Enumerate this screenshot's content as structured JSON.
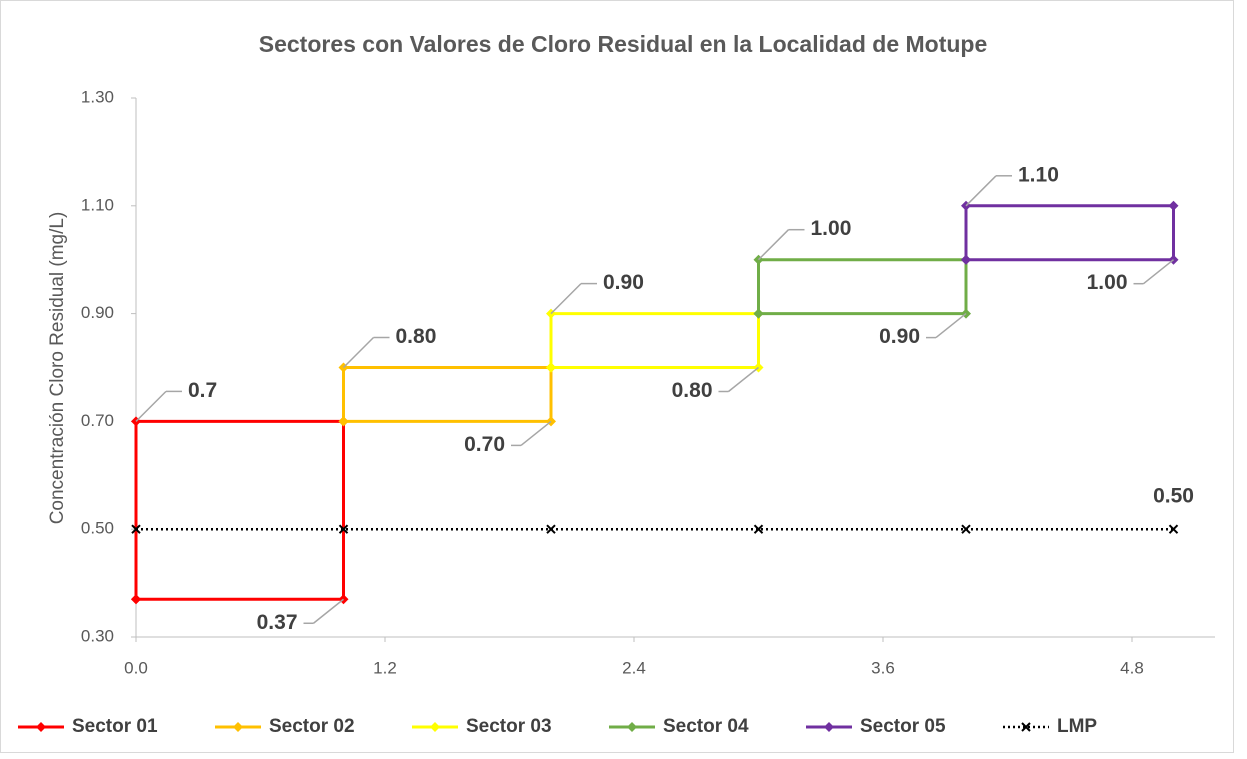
{
  "chart_data": {
    "type": "line",
    "title": "Sectores con Valores de Cloro Residual en la Localidad de Motupe",
    "ylabel": "Concentración Cloro Residual (mg/L)",
    "xlim": [
      0,
      5.2
    ],
    "xticks": [
      {
        "value": 0,
        "label": "0.0"
      },
      1.2,
      2.4,
      3.6,
      4.8
    ],
    "ylim": [
      0.3,
      1.3
    ],
    "yticks": [
      {
        "value": 0.3,
        "label": "0.30"
      },
      {
        "value": 0.5,
        "label": "0.50"
      },
      {
        "value": 0.7,
        "label": "0.70"
      },
      {
        "value": 0.9,
        "label": "0.90"
      },
      {
        "value": 1.1,
        "label": "1.10"
      },
      {
        "value": 1.3,
        "label": "1.30"
      }
    ],
    "grid": false,
    "legend": "bottom",
    "series": [
      {
        "name": "Sector 01",
        "color": "#ff0000",
        "marker": "diamond",
        "dash": "solid",
        "x": [
          0,
          0,
          1,
          1,
          0
        ],
        "values": [
          0.37,
          0.7,
          0.7,
          0.37,
          0.37
        ],
        "value_labels": [
          null,
          "0.7",
          null,
          "0.37",
          null
        ]
      },
      {
        "name": "Sector 02",
        "color": "#ffc000",
        "marker": "diamond",
        "dash": "solid",
        "x": [
          1,
          1,
          2,
          2,
          1
        ],
        "values": [
          0.7,
          0.8,
          0.8,
          0.7,
          0.7
        ],
        "value_labels": [
          null,
          "0.80",
          null,
          "0.70",
          null
        ]
      },
      {
        "name": "Sector 03",
        "color": "#ffff00",
        "marker": "diamond",
        "dash": "solid",
        "x": [
          2,
          2,
          3,
          3,
          2
        ],
        "values": [
          0.8,
          0.9,
          0.9,
          0.8,
          0.8
        ],
        "value_labels": [
          null,
          "0.90",
          null,
          "0.80",
          null
        ]
      },
      {
        "name": "Sector 04",
        "color": "#70ad47",
        "marker": "diamond",
        "dash": "solid",
        "x": [
          3,
          3,
          4,
          4,
          3
        ],
        "values": [
          0.9,
          1.0,
          1.0,
          0.9,
          0.9
        ],
        "value_labels": [
          null,
          "1.00",
          null,
          "0.90",
          null
        ]
      },
      {
        "name": "Sector 05",
        "color": "#7030a0",
        "marker": "diamond",
        "dash": "solid",
        "x": [
          4,
          4,
          5,
          5,
          4
        ],
        "values": [
          1.0,
          1.1,
          1.1,
          1.0,
          1.0
        ],
        "value_labels": [
          null,
          "1.10",
          null,
          "1.00",
          null
        ]
      },
      {
        "name": "LMP",
        "color": "#000000",
        "marker": "x",
        "dash": "dotted",
        "x": [
          0,
          1,
          2,
          3,
          4,
          5
        ],
        "values": [
          0.5,
          0.5,
          0.5,
          0.5,
          0.5,
          0.5
        ],
        "value_labels": [
          null,
          null,
          null,
          null,
          null,
          "0.50"
        ]
      }
    ]
  }
}
